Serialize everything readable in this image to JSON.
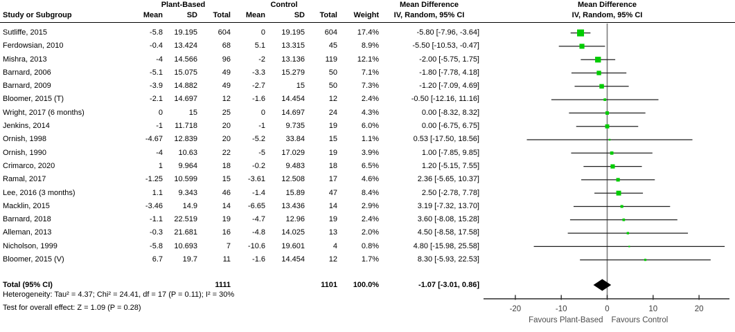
{
  "header": {
    "study": "Study or Subgroup",
    "group1": "Plant-Based",
    "group2": "Control",
    "mean": "Mean",
    "sd": "SD",
    "total": "Total",
    "weight": "Weight",
    "md_line1": "Mean Difference",
    "md_line2": "IV, Random, 95% CI",
    "plot_line1": "Mean Difference",
    "plot_line2": "IV, Random, 95% CI"
  },
  "chart_data": {
    "type": "forest",
    "effect_measure": "Mean Difference, IV, Random, 95% CI",
    "x_ticks": [
      -20,
      -10,
      0,
      10,
      20
    ],
    "x_tick_labels": [
      "-20",
      "-10",
      "0",
      "10",
      "20"
    ],
    "x_range": [
      -26.5,
      26.5
    ],
    "zero_line": 0,
    "favours_left": "Favours Plant-Based",
    "favours_right": "Favours Control",
    "marker_color": "#00cc00",
    "diamond_color": "#000000",
    "studies": [
      {
        "name": "Sutliffe, 2015",
        "pbMean": "-5.8",
        "pbSd": "19.195",
        "pbTotal": "604",
        "cMean": "0",
        "cSd": "19.195",
        "cTotal": "604",
        "weight": "17.4%",
        "ciText": "-5.80 [-7.96, -3.64]",
        "md": -5.8,
        "lo": -7.96,
        "hi": -3.64,
        "w": 17.4
      },
      {
        "name": "Ferdowsian, 2010",
        "pbMean": "-0.4",
        "pbSd": "13.424",
        "pbTotal": "68",
        "cMean": "5.1",
        "cSd": "13.315",
        "cTotal": "45",
        "weight": "8.9%",
        "ciText": "-5.50 [-10.53, -0.47]",
        "md": -5.5,
        "lo": -10.53,
        "hi": -0.47,
        "w": 8.9
      },
      {
        "name": "Mishra, 2013",
        "pbMean": "-4",
        "pbSd": "14.566",
        "pbTotal": "96",
        "cMean": "-2",
        "cSd": "13.136",
        "cTotal": "119",
        "weight": "12.1%",
        "ciText": "-2.00 [-5.75, 1.75]",
        "md": -2.0,
        "lo": -5.75,
        "hi": 1.75,
        "w": 12.1
      },
      {
        "name": "Barnard, 2006",
        "pbMean": "-5.1",
        "pbSd": "15.075",
        "pbTotal": "49",
        "cMean": "-3.3",
        "cSd": "15.279",
        "cTotal": "50",
        "weight": "7.1%",
        "ciText": "-1.80 [-7.78, 4.18]",
        "md": -1.8,
        "lo": -7.78,
        "hi": 4.18,
        "w": 7.1
      },
      {
        "name": "Barnard, 2009",
        "pbMean": "-3.9",
        "pbSd": "14.882",
        "pbTotal": "49",
        "cMean": "-2.7",
        "cSd": "15",
        "cTotal": "50",
        "weight": "7.3%",
        "ciText": "-1.20 [-7.09, 4.69]",
        "md": -1.2,
        "lo": -7.09,
        "hi": 4.69,
        "w": 7.3
      },
      {
        "name": "Bloomer, 2015 (T)",
        "pbMean": "-2.1",
        "pbSd": "14.697",
        "pbTotal": "12",
        "cMean": "-1.6",
        "cSd": "14.454",
        "cTotal": "12",
        "weight": "2.4%",
        "ciText": "-0.50 [-12.16, 11.16]",
        "md": -0.5,
        "lo": -12.16,
        "hi": 11.16,
        "w": 2.4
      },
      {
        "name": "Wright, 2017 (6 months)",
        "pbMean": "0",
        "pbSd": "15",
        "pbTotal": "25",
        "cMean": "0",
        "cSd": "14.697",
        "cTotal": "24",
        "weight": "4.3%",
        "ciText": "0.00 [-8.32, 8.32]",
        "md": 0.0,
        "lo": -8.32,
        "hi": 8.32,
        "w": 4.3
      },
      {
        "name": "Jenkins, 2014",
        "pbMean": "-1",
        "pbSd": "11.718",
        "pbTotal": "20",
        "cMean": "-1",
        "cSd": "9.735",
        "cTotal": "19",
        "weight": "6.0%",
        "ciText": "0.00 [-6.75, 6.75]",
        "md": 0.0,
        "lo": -6.75,
        "hi": 6.75,
        "w": 6.0
      },
      {
        "name": "Ornish, 1998",
        "pbMean": "-4.67",
        "pbSd": "12.839",
        "pbTotal": "20",
        "cMean": "-5.2",
        "cSd": "33.84",
        "cTotal": "15",
        "weight": "1.1%",
        "ciText": "0.53 [-17.50, 18.56]",
        "md": 0.53,
        "lo": -17.5,
        "hi": 18.56,
        "w": 1.1
      },
      {
        "name": "Ornish, 1990",
        "pbMean": "-4",
        "pbSd": "10.63",
        "pbTotal": "22",
        "cMean": "-5",
        "cSd": "17.029",
        "cTotal": "19",
        "weight": "3.9%",
        "ciText": "1.00 [-7.85, 9.85]",
        "md": 1.0,
        "lo": -7.85,
        "hi": 9.85,
        "w": 3.9
      },
      {
        "name": "Crimarco, 2020",
        "pbMean": "1",
        "pbSd": "9.964",
        "pbTotal": "18",
        "cMean": "-0.2",
        "cSd": "9.483",
        "cTotal": "18",
        "weight": "6.5%",
        "ciText": "1.20 [-5.15, 7.55]",
        "md": 1.2,
        "lo": -5.15,
        "hi": 7.55,
        "w": 6.5
      },
      {
        "name": "Ramal, 2017",
        "pbMean": "-1.25",
        "pbSd": "10.599",
        "pbTotal": "15",
        "cMean": "-3.61",
        "cSd": "12.508",
        "cTotal": "17",
        "weight": "4.6%",
        "ciText": "2.36 [-5.65, 10.37]",
        "md": 2.36,
        "lo": -5.65,
        "hi": 10.37,
        "w": 4.6
      },
      {
        "name": "Lee, 2016 (3 months)",
        "pbMean": "1.1",
        "pbSd": "9.343",
        "pbTotal": "46",
        "cMean": "-1.4",
        "cSd": "15.89",
        "cTotal": "47",
        "weight": "8.4%",
        "ciText": "2.50 [-2.78, 7.78]",
        "md": 2.5,
        "lo": -2.78,
        "hi": 7.78,
        "w": 8.4
      },
      {
        "name": "Macklin, 2015",
        "pbMean": "-3.46",
        "pbSd": "14.9",
        "pbTotal": "14",
        "cMean": "-6.65",
        "cSd": "13.436",
        "cTotal": "14",
        "weight": "2.9%",
        "ciText": "3.19 [-7.32, 13.70]",
        "md": 3.19,
        "lo": -7.32,
        "hi": 13.7,
        "w": 2.9
      },
      {
        "name": "Barnard, 2018",
        "pbMean": "-1.1",
        "pbSd": "22.519",
        "pbTotal": "19",
        "cMean": "-4.7",
        "cSd": "12.96",
        "cTotal": "19",
        "weight": "2.4%",
        "ciText": "3.60 [-8.08, 15.28]",
        "md": 3.6,
        "lo": -8.08,
        "hi": 15.28,
        "w": 2.4
      },
      {
        "name": "Alleman, 2013",
        "pbMean": "-0.3",
        "pbSd": "21.681",
        "pbTotal": "16",
        "cMean": "-4.8",
        "cSd": "14.025",
        "cTotal": "13",
        "weight": "2.0%",
        "ciText": "4.50 [-8.58, 17.58]",
        "md": 4.5,
        "lo": -8.58,
        "hi": 17.58,
        "w": 2.0
      },
      {
        "name": "Nicholson, 1999",
        "pbMean": "-5.8",
        "pbSd": "10.693",
        "pbTotal": "7",
        "cMean": "-10.6",
        "cSd": "19.601",
        "cTotal": "4",
        "weight": "0.8%",
        "ciText": "4.80 [-15.98, 25.58]",
        "md": 4.8,
        "lo": -15.98,
        "hi": 25.58,
        "w": 0.8
      },
      {
        "name": "Bloomer, 2015 (V)",
        "pbMean": "6.7",
        "pbSd": "19.7",
        "pbTotal": "11",
        "cMean": "-1.6",
        "cSd": "14.454",
        "cTotal": "12",
        "weight": "1.7%",
        "ciText": "8.30 [-5.93, 22.53]",
        "md": 8.3,
        "lo": -5.93,
        "hi": 22.53,
        "w": 1.7
      }
    ],
    "total": {
      "label": "Total (95% CI)",
      "pbTotal": "1111",
      "cTotal": "1101",
      "weight": "100.0%",
      "ciText": "-1.07 [-3.01, 0.86]",
      "md": -1.07,
      "lo": -3.01,
      "hi": 0.86
    }
  },
  "footer": {
    "heterogeneity": "Heterogeneity: Tau² = 4.37; Chi² = 24.41, df = 17 (P = 0.11); I² = 30%",
    "overall": "Test for overall effect: Z = 1.09 (P = 0.28)"
  }
}
